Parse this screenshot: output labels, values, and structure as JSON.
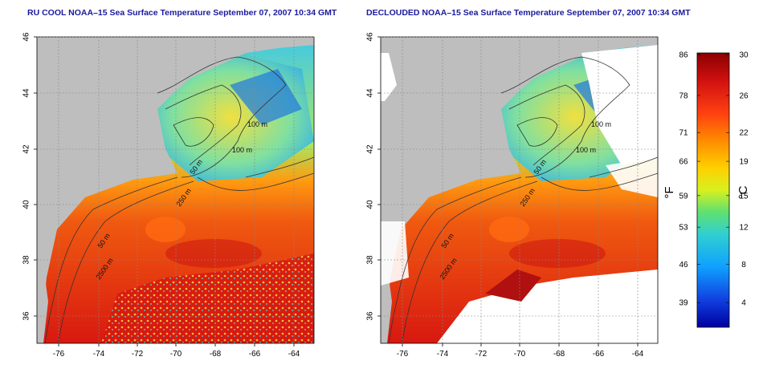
{
  "panels": [
    {
      "title": "RU COOL NOAA–15 Sea Surface Temperature September 07, 2007 10:34 GMT",
      "lon_ticks": [
        "-76",
        "-74",
        "-72",
        "-70",
        "-68",
        "-66",
        "-64"
      ],
      "lat_ticks": [
        "46",
        "44",
        "42",
        "40",
        "38",
        "36"
      ],
      "contour_labels": [
        "100 m",
        "100 m",
        "50 m",
        "250 m",
        "50 m",
        "2500 m"
      ]
    },
    {
      "title": "DECLOUDED NOAA–15 Sea Surface Temperature September 07, 2007 10:34 GMT",
      "lon_ticks": [
        "-76",
        "-74",
        "-72",
        "-70",
        "-68",
        "-66",
        "-64"
      ],
      "lat_ticks": [
        "46",
        "44",
        "42",
        "40",
        "38",
        "36"
      ],
      "contour_labels": [
        "100 m",
        "100 m",
        "50 m",
        "250 m",
        "50 m",
        "2500 m"
      ]
    }
  ],
  "colorbar": {
    "fahrenheit_label": "°F",
    "celsius_label": "°C",
    "fahrenheit_ticks": [
      "86",
      "78",
      "71",
      "66",
      "59",
      "53",
      "46",
      "39"
    ],
    "celsius_ticks": [
      "30",
      "26",
      "22",
      "19",
      "15",
      "12",
      "8",
      "4"
    ],
    "colors": [
      "#8b0000",
      "#d01010",
      "#ff4010",
      "#ff8c00",
      "#ffd000",
      "#d8f020",
      "#60e070",
      "#30d0d0",
      "#10a0ff",
      "#1040e0",
      "#0000a0"
    ]
  },
  "map_colors": {
    "land": "#bebebe",
    "cloud": "#ffffff",
    "warm": "#e83a10",
    "hot": "#c41010",
    "cool": "#40c8e8",
    "mid": "#f0d020"
  }
}
